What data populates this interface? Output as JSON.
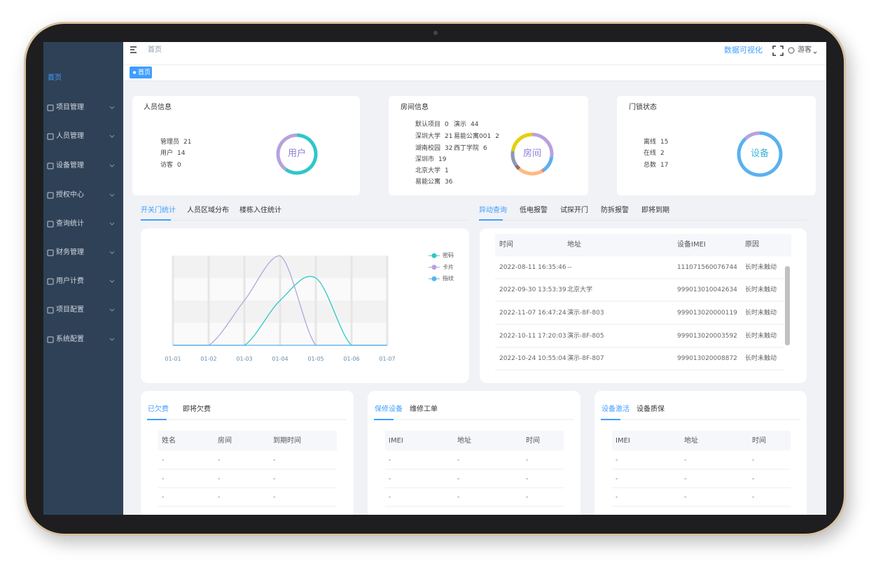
{
  "sidebar": {
    "menu": [
      "首页",
      "项目管理",
      "人员管理",
      "设备管理",
      "授权中心",
      "查询统计",
      "财务管理",
      "用户计费",
      "项目配置",
      "系统配置"
    ]
  },
  "topbar": {
    "breadcrumb": "首页",
    "visualize": "数据可视化",
    "user": "游客"
  },
  "tabs": [
    "首页"
  ],
  "cards": [
    {
      "title": "人员信息",
      "center": "用户",
      "items": [
        {
          "label": "管理员",
          "value": 21,
          "color": "#2ec7c9"
        },
        {
          "label": "用户",
          "value": 14,
          "color": "#b6a2de"
        },
        {
          "label": "访客",
          "value": 0,
          "color": "#5ab1ef"
        }
      ]
    },
    {
      "title": "房间信息",
      "center": "房间",
      "items": [
        {
          "label": "默认项目",
          "value": 0,
          "color": "#2ec7c9"
        },
        {
          "label": "演示",
          "value": 44,
          "color": "#b6a2de"
        },
        {
          "label": "深圳大学",
          "value": 21,
          "color": "#5ab1ef"
        },
        {
          "label": "易能公寓001",
          "value": 2,
          "color": "#d87a80"
        },
        {
          "label": "湖南校园",
          "value": 32,
          "color": "#ffb980"
        },
        {
          "label": "西丁学院",
          "value": 6,
          "color": "#95706d"
        },
        {
          "label": "深圳市",
          "value": 19,
          "color": "#8d98b3"
        },
        {
          "label": "北京大学",
          "value": 1,
          "color": "#97b552"
        },
        {
          "label": "易能公寓",
          "value": 36,
          "color": "#e5cf0d"
        }
      ]
    },
    {
      "title": "门锁状态",
      "center": "设备",
      "items": [
        {
          "label": "离线",
          "value": 15,
          "color": "#5ab1ef"
        },
        {
          "label": "在线",
          "value": 2,
          "color": "#b6a2de"
        },
        {
          "label": "总数",
          "value": 17
        }
      ]
    }
  ],
  "chart_tabs": [
    "开关门统计",
    "人员区域分布",
    "楼栋入住统计"
  ],
  "line_chart": {
    "type": "line",
    "x": [
      "01-01",
      "01-02",
      "01-03",
      "01-04",
      "01-05",
      "01-06",
      "01-07"
    ],
    "series": [
      {
        "name": "密码",
        "color": "#2ec7c9",
        "values": [
          0,
          0,
          0,
          2,
          3,
          0,
          0
        ]
      },
      {
        "name": "卡片",
        "color": "#b6a2de",
        "values": [
          0,
          0,
          2,
          4,
          0,
          0,
          0
        ]
      },
      {
        "name": "指纹",
        "color": "#5ab1ef",
        "values": [
          0,
          0,
          0,
          0,
          0,
          0,
          0
        ]
      }
    ],
    "ylim": [
      0,
      4
    ]
  },
  "alert_tabs": [
    "异动查询",
    "低电报警",
    "试探开门",
    "防拆报警",
    "即将到期"
  ],
  "alert_table": {
    "columns": [
      "时间",
      "地址",
      "设备IMEI",
      "原因"
    ],
    "rows": [
      [
        "2022-08-11 16:35:46",
        "--",
        "111071560076744",
        "长时未触动"
      ],
      [
        "2022-09-30 13:53:39",
        "北京大学",
        "999013010042634",
        "长时未触动"
      ],
      [
        "2022-11-07 16:47:24",
        "演示-8F-803",
        "999013020000119",
        "长时未触动"
      ],
      [
        "2022-10-11 17:20:03",
        "演示-8F-805",
        "999013020003592",
        "长时未触动"
      ],
      [
        "2022-10-24 10:55:04",
        "演示-8F-807",
        "999013020008872",
        "长时未触动"
      ]
    ]
  },
  "panels": [
    {
      "tabs": [
        "已欠费",
        "即将欠费"
      ],
      "columns": [
        "姓名",
        "房间",
        "到期时间"
      ],
      "rows": [
        [
          "-",
          "-",
          "-"
        ],
        [
          "-",
          "-",
          "-"
        ],
        [
          "-",
          "-",
          "-"
        ]
      ]
    },
    {
      "tabs": [
        "保修设备",
        "维修工单"
      ],
      "columns": [
        "IMEI",
        "地址",
        "时间"
      ],
      "rows": [
        [
          "-",
          "-",
          "-"
        ],
        [
          "-",
          "-",
          "-"
        ],
        [
          "-",
          "-",
          "-"
        ]
      ]
    },
    {
      "tabs": [
        "设备激活",
        "设备质保"
      ],
      "columns": [
        "IMEI",
        "地址",
        "时间"
      ],
      "rows": [
        [
          "-",
          "-",
          "-"
        ],
        [
          "-",
          "-",
          "-"
        ],
        [
          "-",
          "-",
          "-"
        ]
      ]
    }
  ]
}
